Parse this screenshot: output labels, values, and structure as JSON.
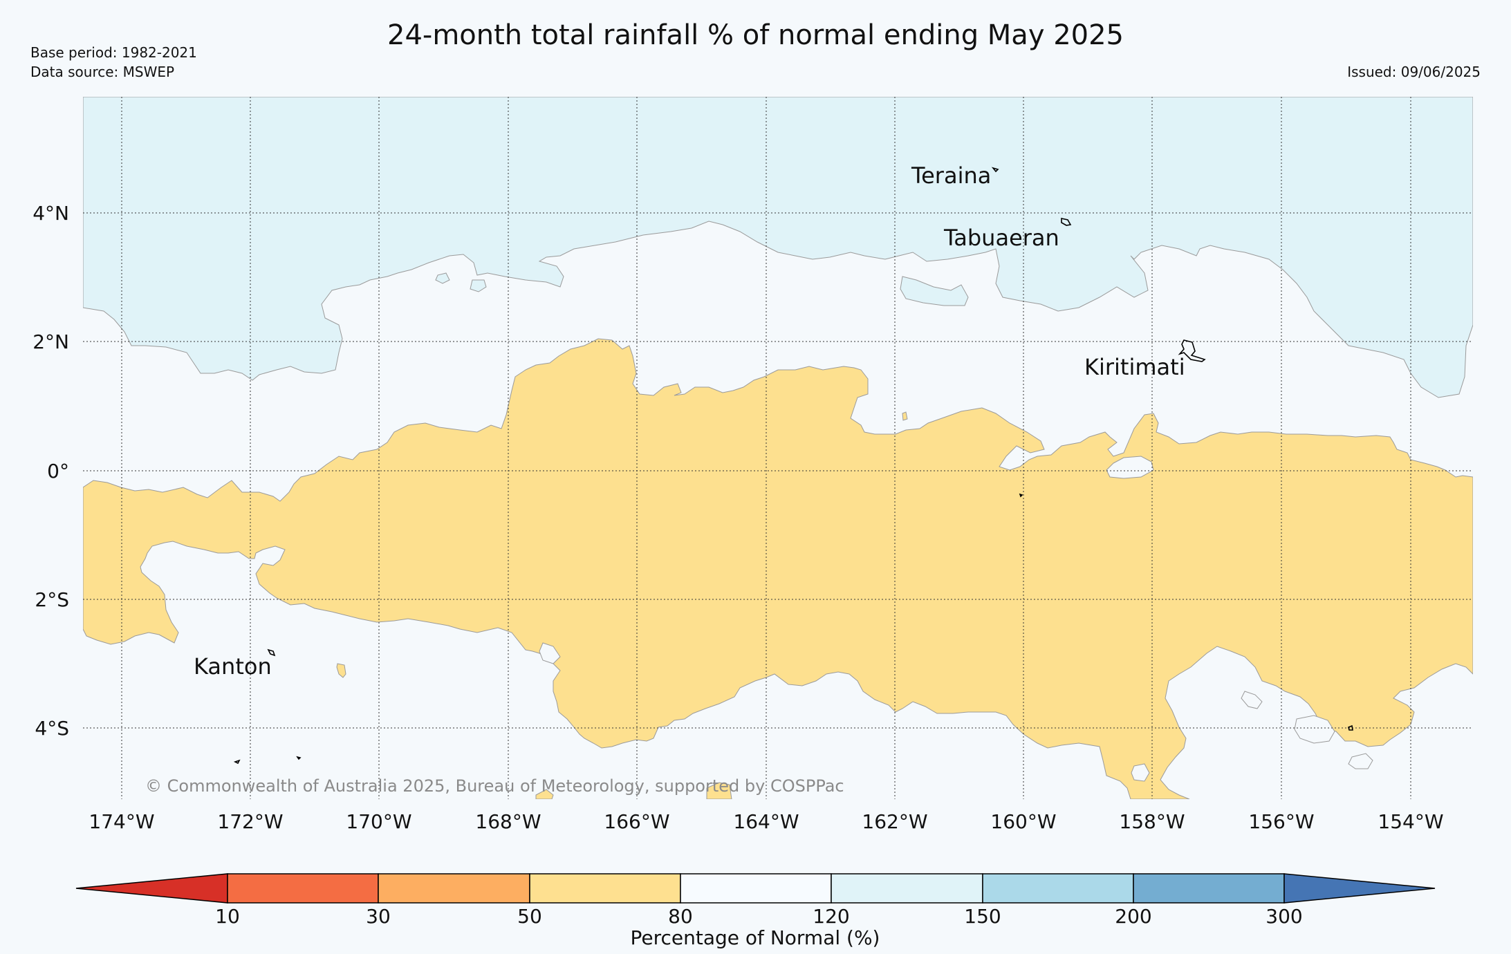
{
  "header": {
    "title": "24-month total rainfall % of normal ending May 2025",
    "base_period": "Base period: 1982-2021",
    "data_source": "Data source: MSWEP",
    "issued": "Issued: 09/06/2025"
  },
  "map": {
    "latitude_labels": [
      "4°N",
      "2°N",
      "0°",
      "2°S",
      "4°S"
    ],
    "longitude_labels": [
      "174°W",
      "172°W",
      "170°W",
      "168°W",
      "166°W",
      "164°W",
      "162°W",
      "160°W",
      "158°W",
      "156°W",
      "154°W"
    ],
    "islands": [
      "Teraina",
      "Tabuaeran",
      "Kiritimati",
      "Kanton"
    ],
    "copyright": "© Commonwealth of Australia 2025, Bureau of Meteorology, supported by COSPPac",
    "colors": {
      "band_50_80": "#fde08f",
      "band_80_120": "#f5f9fc",
      "band_120_150": "#e0f3f8"
    }
  },
  "colorbar": {
    "label": "Percentage of Normal (%)",
    "ticks": [
      "10",
      "30",
      "50",
      "80",
      "120",
      "150",
      "200",
      "300"
    ],
    "colors": [
      "#d73027",
      "#f46d43",
      "#fdae61",
      "#fee090",
      "#f7fbff",
      "#e0f3f8",
      "#abd9e9",
      "#74add1",
      "#4575b4"
    ]
  }
}
